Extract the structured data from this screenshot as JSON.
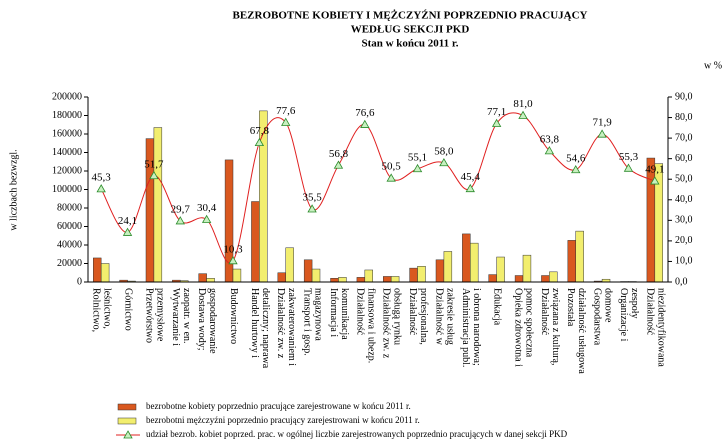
{
  "chart_data": {
    "type": "bar-line",
    "title": "BEZROBOTNE KOBIETY I MĘŻCZYŹNI POPRZEDNIO PRACUJĄCY",
    "subtitle": "WEDŁUG SEKCJI PKD",
    "subtitle2": "Stan w końcu 2011 r.",
    "ylabel": "w liczbach bezwzgl.",
    "y2label": "w %",
    "categories": [
      "Rolnictwo,\nleśnictwo,",
      "Górnictwo",
      "Przetwórstwo\nprzemysłowe",
      "Wytwarzanie i\nzaopatr. w en.",
      "Dostawa wody;\ngospodarowanie",
      "Budownictwo",
      "Handel hurtowy i\ndetaliczny; naprawa",
      "Działalność zw. z\nzakwaterowaniem i",
      "Transport i gosp.\nmagazynowa",
      "Informacja i\nkomunikacja",
      "Działalność\nfinansowa i ubezp.",
      "Działalność zw. z\nobsługą rynku",
      "Działalność\nprofesjonalna,",
      "Działalność w\nzakresie usług",
      "Administracja publ.\ni obrona narodowa;",
      "Edukacja",
      "Opieka zdrowotna i\npomoc społeczna",
      "Działalność\nzwiązana z kulturą,",
      "Pozostała\ndziałalność usługowa",
      "Gospodarstwa\ndomowe",
      "Organizacje i\nzespoły",
      "Działalność\nniezidentyfikowana"
    ],
    "series": [
      {
        "name": "bezrobotne kobiety poprzednio pracujące zarejestrowane w końcu 2011 r.",
        "color": "#d9581f",
        "values": [
          26000,
          2000,
          155000,
          2000,
          9000,
          132000,
          87000,
          10000,
          24000,
          4000,
          5000,
          6000,
          15000,
          24000,
          52000,
          8000,
          7000,
          7000,
          45000,
          1000,
          500,
          134000
        ]
      },
      {
        "name": "bezrobotni mężczyźni poprzednio pracujący zarejestrowani w końcu 2011 r.",
        "color": "#f2ee6e",
        "values": [
          20000,
          1000,
          167000,
          1500,
          4000,
          14000,
          185000,
          37000,
          14000,
          5000,
          13000,
          6000,
          17000,
          33000,
          42000,
          27000,
          29000,
          11000,
          55000,
          3000,
          500,
          128000
        ]
      },
      {
        "name": "udział bezrob. kobiet poprzed. prac. w ogólnej liczbie zarejestrowanych poprzednio pracujących w danej sekcji PKD",
        "color": "#e02020",
        "axis": "y2",
        "values": [
          45.3,
          24.1,
          51.7,
          29.7,
          30.4,
          10.3,
          67.8,
          77.6,
          35.5,
          56.8,
          76.6,
          50.5,
          55.1,
          58.0,
          45.4,
          77.1,
          81.0,
          63.8,
          54.6,
          71.9,
          55.3,
          49.1
        ],
        "value_labels": [
          "45,3",
          "24,1",
          "51,7",
          "29,7",
          "30,4",
          "10,3",
          "67,8",
          "77,6",
          "35,5",
          "56,8",
          "76,6",
          "50,5",
          "55,1",
          "58,0",
          "45,4",
          "77,1",
          "81,0",
          "63,8",
          "54,6",
          "71,9",
          "55,3",
          "49,1"
        ]
      }
    ],
    "ylim": [
      0,
      200000
    ],
    "yticks": [
      0,
      20000,
      40000,
      60000,
      80000,
      100000,
      120000,
      140000,
      160000,
      180000,
      200000
    ],
    "y2lim": [
      0,
      90
    ],
    "y2ticks": [
      {
        "value": 0,
        "label": "0,0"
      },
      {
        "value": 10,
        "label": "10,0"
      },
      {
        "value": 20,
        "label": "20,0"
      },
      {
        "value": 30,
        "label": "30,0"
      },
      {
        "value": 40,
        "label": "40,0"
      },
      {
        "value": 50,
        "label": "50,0"
      },
      {
        "value": 60,
        "label": "60,0"
      },
      {
        "value": 70,
        "label": "70,0"
      },
      {
        "value": 80,
        "label": "80,0"
      },
      {
        "value": 90,
        "label": "90,0"
      }
    ]
  }
}
